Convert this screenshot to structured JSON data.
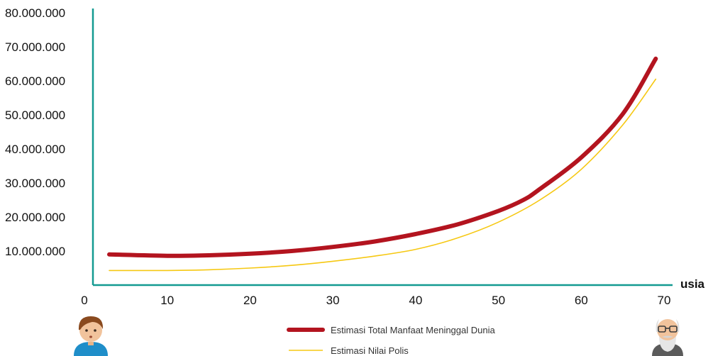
{
  "chart_data": {
    "type": "line",
    "title": "",
    "xlabel": "usia",
    "ylabel": "",
    "xlim": [
      0,
      70
    ],
    "ylim": [
      0,
      80000000
    ],
    "x_ticks": [
      0,
      10,
      20,
      30,
      40,
      50,
      60,
      70
    ],
    "y_ticks": [
      10000000,
      20000000,
      30000000,
      40000000,
      50000000,
      60000000,
      70000000,
      80000000
    ],
    "x_tick_labels": [
      "0",
      "10",
      "20",
      "30",
      "40",
      "50",
      "60",
      "70"
    ],
    "y_tick_labels": [
      "10.000.000",
      "20.000.000",
      "30.000.000",
      "40.000.000",
      "50.000.000",
      "60.000.000",
      "70.000.000",
      "80.000.000"
    ],
    "grid": false,
    "legend_position": "bottom-center",
    "series": [
      {
        "name": "Estimasi Total Manfaat Meninggal Dunia",
        "color": "#b3141f",
        "x": [
          3,
          10,
          15,
          20,
          25,
          30,
          35,
          40,
          45,
          50,
          53,
          55,
          60,
          65,
          69
        ],
        "y": [
          9000000,
          8600000,
          8750000,
          9200000,
          10000000,
          11200000,
          12800000,
          15000000,
          17800000,
          21800000,
          25000000,
          28200000,
          37500000,
          50200000,
          66500000
        ]
      },
      {
        "name": "Estimasi Nilai Polis",
        "color": "#f6c812",
        "x": [
          3,
          10,
          15,
          20,
          25,
          30,
          35,
          40,
          45,
          50,
          55,
          60,
          65,
          69
        ],
        "y": [
          4300000,
          4300000,
          4500000,
          5000000,
          5800000,
          7000000,
          8500000,
          10500000,
          13800000,
          18500000,
          25000000,
          34000000,
          47000000,
          60500000
        ]
      }
    ]
  },
  "icons": {
    "left": "young-person-icon",
    "right": "elderly-person-icon"
  }
}
